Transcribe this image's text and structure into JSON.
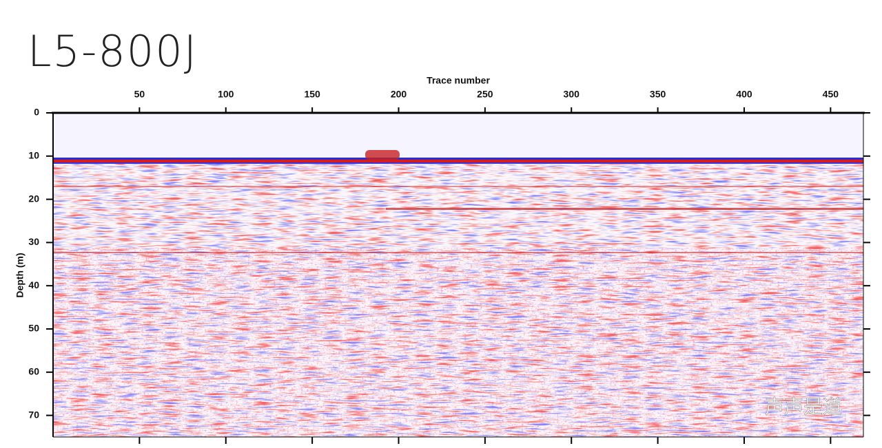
{
  "chart_data": {
    "type": "seismic-section",
    "title": "L5-800J",
    "x_label": "Trace number",
    "y_label": "Depth (m)",
    "xlim": [
      0,
      469
    ],
    "xticks": [
      50,
      100,
      150,
      200,
      250,
      300,
      350,
      400,
      450
    ],
    "ylim": [
      0,
      75
    ],
    "yticks": [
      0,
      10,
      20,
      30,
      40,
      50,
      60,
      70
    ],
    "y_inverted": true,
    "watermark": "声声是道"
  }
}
